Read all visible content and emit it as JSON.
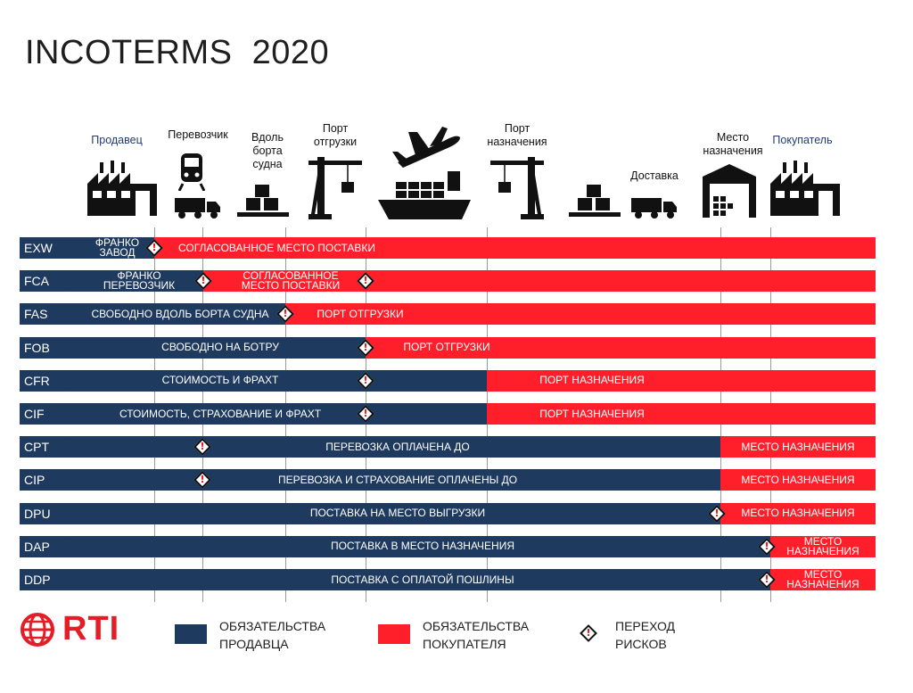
{
  "title": "INCOTERMS  2020",
  "colors": {
    "seller": "#1f3a5f",
    "buyer": "#ff1f2a",
    "risk_mark": "#e11111"
  },
  "columns": [
    {
      "label": "Продавец",
      "color": "blue"
    },
    {
      "label": "Перевозчик"
    },
    {
      "label": "Вдоль\nборта\nсудна"
    },
    {
      "label": "Порт\nотгрузки"
    },
    {
      "label": "Порт\nназначения"
    },
    {
      "label": "Доставка"
    },
    {
      "label": "Место\nназначения"
    },
    {
      "label": "Покупатель",
      "color": "blue"
    }
  ],
  "rows": [
    {
      "code": "EXW",
      "seller_label": "ФРАНКО\nЗАВОД",
      "buyer_label": "СОГЛАСОВАННОЕ МЕСТО ПОСТАВКИ"
    },
    {
      "code": "FCA",
      "seller_label": "ФРАНКО\nПЕРЕВОЗЧИК",
      "buyer_label": "СОГЛАСОВАННОЕ\nМЕСТО ПОСТАВКИ"
    },
    {
      "code": "FAS",
      "seller_label": "СВОБОДНО ВДОЛЬ БОРТА СУДНА",
      "buyer_label": "ПОРТ ОТГРУЗКИ"
    },
    {
      "code": "FOB",
      "seller_label": "СВОБОДНО НА БОТРУ",
      "buyer_label": "ПОРТ ОТГРУЗКИ"
    },
    {
      "code": "CFR",
      "seller_label": "СТОИМОСТЬ И ФРАХТ",
      "buyer_label": "ПОРТ НАЗНАЧЕНИЯ"
    },
    {
      "code": "CIF",
      "seller_label": "СТОИМОСТЬ, СТРАХОВАНИЕ И ФРАХТ",
      "buyer_label": "ПОРТ НАЗНАЧЕНИЯ"
    },
    {
      "code": "CPT",
      "seller_label": "ПЕРЕВОЗКА ОПЛАЧЕНА ДО",
      "buyer_label": "МЕСТО НАЗНАЧЕНИЯ"
    },
    {
      "code": "CIP",
      "seller_label": "ПЕРЕВОЗКА И СТРАХОВАНИЕ ОПЛАЧЕНЫ ДО",
      "buyer_label": "МЕСТО НАЗНАЧЕНИЯ"
    },
    {
      "code": "DPU",
      "seller_label": "ПОСТАВКА НА МЕСТО ВЫГРУЗКИ",
      "buyer_label": "МЕСТО НАЗНАЧЕНИЯ"
    },
    {
      "code": "DAP",
      "seller_label": "ПОСТАВКА В МЕСТО НАЗНАЧЕНИЯ",
      "buyer_label": "МЕСТО\nНАЗНАЧЕНИЯ"
    },
    {
      "code": "DDP",
      "seller_label": "ПОСТАВКА С ОПЛАТОЙ ПОШЛИНЫ",
      "buyer_label": "МЕСТО\nНАЗНАЧЕНИЯ"
    }
  ],
  "legend": {
    "seller": "ОБЯЗАТЕЛЬСТВА\nПРОДАВЦА",
    "buyer": "ОБЯЗАТЕЛЬСТВА\nПОКУПАТЕЛЯ",
    "risk": "ПЕРЕХОД\nРИСКОВ"
  },
  "logo": {
    "text": "RTI",
    "icon": "globe-icon"
  },
  "icons": [
    "factory-icon",
    "truck-icon",
    "train-icon",
    "pallet-icon",
    "crane-icon",
    "plane-icon",
    "ship-icon",
    "warehouse-icon"
  ]
}
